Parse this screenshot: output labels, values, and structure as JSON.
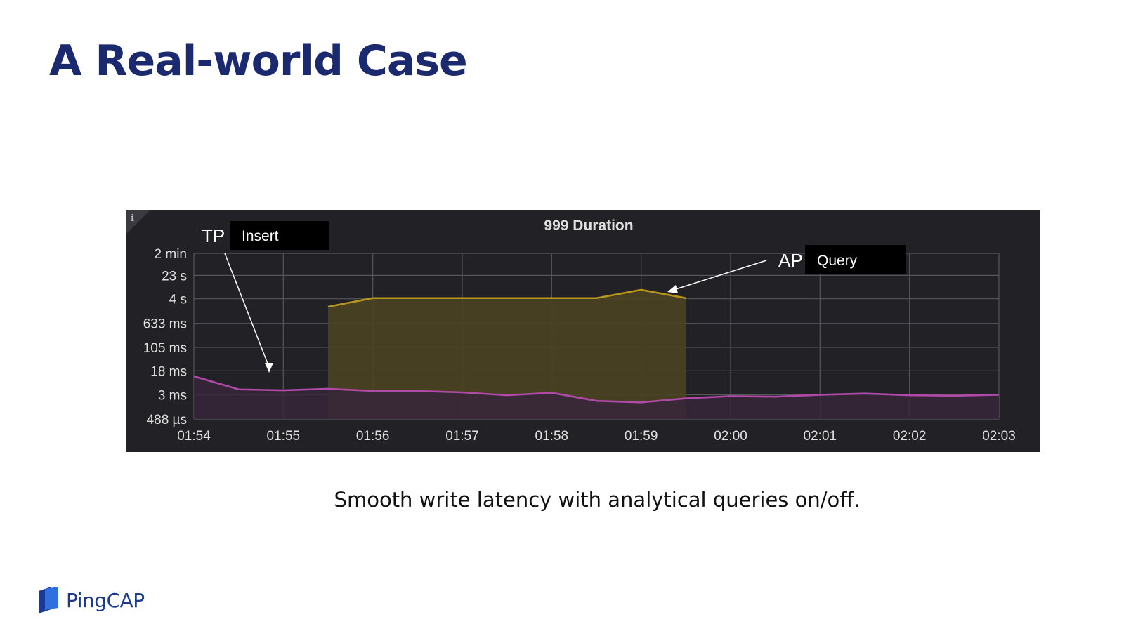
{
  "slide": {
    "title": "A Real-world Case",
    "caption": "Smooth write latency with analytical queries on/off.",
    "brand": "PingCAP"
  },
  "annotations": {
    "tp": {
      "tag": "TP",
      "label": "Insert"
    },
    "ap": {
      "tag": "AP",
      "label": "Query"
    }
  },
  "panel": {
    "info_glyph": "i"
  },
  "colors": {
    "title": "#1b2a6e",
    "panel_bg": "#222226",
    "grid": "#55555b",
    "text": "#e0e0e0",
    "tp_line": "#b04aa8",
    "ap_line": "#b8961a",
    "ap_fill": "#4a4322",
    "tp_fill": "#37263a",
    "logo": "#1c3a8f"
  },
  "chart_data": {
    "type": "line",
    "title": "999 Duration",
    "xlabel": "",
    "ylabel": "",
    "x_ticks": [
      "01:54",
      "01:55",
      "01:56",
      "01:57",
      "01:58",
      "01:59",
      "02:00",
      "02:01",
      "02:02",
      "02:03"
    ],
    "y_scale": "log",
    "y_ticks": [
      "488 µs",
      "3 ms",
      "18 ms",
      "105 ms",
      "633 ms",
      "4 s",
      "23 s",
      "2 min"
    ],
    "y_tick_values": [
      0.000488,
      0.003,
      0.018,
      0.105,
      0.633,
      4,
      23,
      120
    ],
    "ylim": [
      0.000488,
      120
    ],
    "grid": true,
    "series": [
      {
        "name": "",
        "color": "#b04aa8",
        "area_fill": true,
        "x": [
          "01:54:00",
          "01:54:30",
          "01:55:00",
          "01:55:30",
          "01:56:00",
          "01:56:30",
          "01:57:00",
          "01:57:30",
          "01:58:00",
          "01:58:30",
          "01:59:00",
          "01:59:30",
          "02:00:00",
          "02:00:30",
          "02:01:00",
          "02:01:30",
          "02:02:00",
          "02:02:30",
          "02:03:00"
        ],
        "y": [
          0.012,
          0.0045,
          0.0042,
          0.0047,
          0.004,
          0.004,
          0.0036,
          0.0029,
          0.0035,
          0.0019,
          0.0017,
          0.0023,
          0.0027,
          0.0026,
          0.003,
          0.0033,
          0.0029,
          0.0028,
          0.003
        ]
      },
      {
        "name": "",
        "color": "#b8961a",
        "area_fill": true,
        "x": [
          "01:55:30",
          "01:56:00",
          "01:56:30",
          "01:57:00",
          "01:57:30",
          "01:58:00",
          "01:58:30",
          "01:59:00",
          "01:59:30"
        ],
        "y": [
          2.2,
          4.2,
          4.2,
          4.2,
          4.2,
          4.2,
          4.2,
          7.8,
          4.2
        ]
      }
    ]
  }
}
